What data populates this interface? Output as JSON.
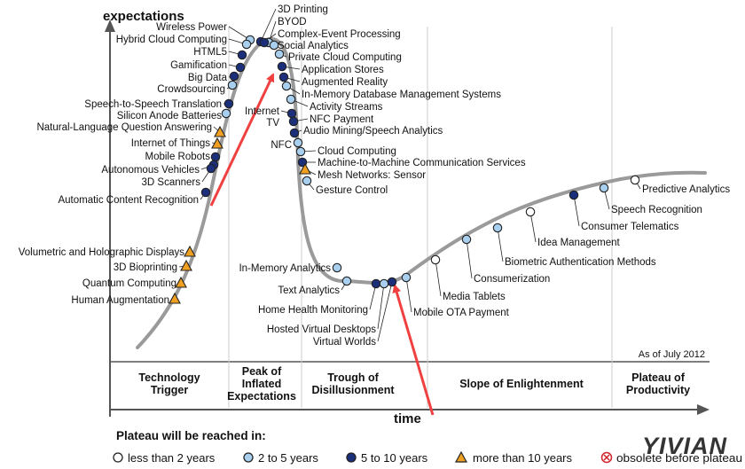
{
  "chart_data": {
    "type": "scatter",
    "xlabel": "time",
    "ylabel": "expectations",
    "as_of": "As of July 2012",
    "phases": [
      "Technology Trigger",
      "Peak of Inflated Expectations",
      "Trough of Disillusionment",
      "Slope of Enlightenment",
      "Plateau of Productivity"
    ],
    "legend": {
      "title": "Plateau will be reached in:",
      "items": [
        {
          "key": "lt2",
          "label": "less than 2 years"
        },
        {
          "key": "2to5",
          "label": "2 to 5 years"
        },
        {
          "key": "5to10",
          "label": "5 to 10 years"
        },
        {
          "key": "gt10",
          "label": "more than 10 years"
        },
        {
          "key": "obsolete",
          "label": "obsolete before plateau"
        }
      ]
    },
    "colors": {
      "curve": "#9a9a9a",
      "lt2": "#ffffff",
      "2to5": "#a9cfee",
      "5to10": "#1b2f7a",
      "gt10": "#f0a020",
      "obsolete": "#d0202a",
      "arrow": "#f04040",
      "axis": "#555555"
    },
    "technologies": [
      {
        "label": "3D Printing",
        "phase": "Peak of Inflated Expectations",
        "plateau": "5to10"
      },
      {
        "label": "BYOD",
        "phase": "Peak of Inflated Expectations",
        "plateau": "2to5"
      },
      {
        "label": "Complex-Event Processing",
        "phase": "Peak of Inflated Expectations",
        "plateau": "5to10"
      },
      {
        "label": "Social Analytics",
        "phase": "Peak of Inflated Expectations",
        "plateau": "2to5"
      },
      {
        "label": "Private Cloud Computing",
        "phase": "Peak of Inflated Expectations",
        "plateau": "2to5"
      },
      {
        "label": "Application Stores",
        "phase": "Peak of Inflated Expectations",
        "plateau": "5to10"
      },
      {
        "label": "Augmented Reality",
        "phase": "Peak of Inflated Expectations",
        "plateau": "5to10"
      },
      {
        "label": "In-Memory Database Management Systems",
        "phase": "Peak of Inflated Expectations",
        "plateau": "2to5"
      },
      {
        "label": "Activity Streams",
        "phase": "Peak of Inflated Expectations",
        "plateau": "2to5"
      },
      {
        "label": "Internet TV",
        "phase": "Peak of Inflated Expectations",
        "plateau": "5to10"
      },
      {
        "label": "NFC Payment",
        "phase": "Peak of Inflated Expectations",
        "plateau": "5to10"
      },
      {
        "label": "Audio Mining/Speech Analytics",
        "phase": "Trough of Disillusionment",
        "plateau": "5to10"
      },
      {
        "label": "NFC",
        "phase": "Trough of Disillusionment",
        "plateau": "2to5"
      },
      {
        "label": "Cloud Computing",
        "phase": "Trough of Disillusionment",
        "plateau": "2to5"
      },
      {
        "label": "Machine-to-Machine Communication Services",
        "phase": "Trough of Disillusionment",
        "plateau": "5to10"
      },
      {
        "label": "Mesh Networks: Sensor",
        "phase": "Trough of Disillusionment",
        "plateau": "gt10"
      },
      {
        "label": "Gesture Control",
        "phase": "Trough of Disillusionment",
        "plateau": "2to5"
      },
      {
        "label": "In-Memory Analytics",
        "phase": "Trough of Disillusionment",
        "plateau": "2to5"
      },
      {
        "label": "Text Analytics",
        "phase": "Trough of Disillusionment",
        "plateau": "2to5"
      },
      {
        "label": "Home Health Monitoring",
        "phase": "Trough of Disillusionment",
        "plateau": "5to10"
      },
      {
        "label": "Hosted Virtual Desktops",
        "phase": "Trough of Disillusionment",
        "plateau": "2to5"
      },
      {
        "label": "Virtual Worlds",
        "phase": "Trough of Disillusionment",
        "plateau": "5to10"
      },
      {
        "label": "Mobile OTA Payment",
        "phase": "Trough of Disillusionment",
        "plateau": "2to5"
      },
      {
        "label": "Media Tablets",
        "phase": "Slope of Enlightenment",
        "plateau": "lt2"
      },
      {
        "label": "Consumerization",
        "phase": "Slope of Enlightenment",
        "plateau": "2to5"
      },
      {
        "label": "Biometric Authentication Methods",
        "phase": "Slope of Enlightenment",
        "plateau": "2to5"
      },
      {
        "label": "Idea Management",
        "phase": "Slope of Enlightenment",
        "plateau": "lt2"
      },
      {
        "label": "Consumer Telematics",
        "phase": "Slope of Enlightenment",
        "plateau": "5to10"
      },
      {
        "label": "Speech Recognition",
        "phase": "Slope of Enlightenment",
        "plateau": "2to5"
      },
      {
        "label": "Predictive Analytics",
        "phase": "Plateau of Productivity",
        "plateau": "lt2"
      },
      {
        "label": "Wireless Power",
        "phase": "Technology Trigger",
        "plateau": "2to5"
      },
      {
        "label": "Hybrid Cloud Computing",
        "phase": "Technology Trigger",
        "plateau": "2to5"
      },
      {
        "label": "HTML5",
        "phase": "Technology Trigger",
        "plateau": "5to10"
      },
      {
        "label": "Gamification",
        "phase": "Technology Trigger",
        "plateau": "5to10"
      },
      {
        "label": "Big Data",
        "phase": "Technology Trigger",
        "plateau": "5to10"
      },
      {
        "label": "Crowdsourcing",
        "phase": "Technology Trigger",
        "plateau": "2to5"
      },
      {
        "label": "Speech-to-Speech Translation",
        "phase": "Technology Trigger",
        "plateau": "5to10"
      },
      {
        "label": "Silicon Anode Batteries",
        "phase": "Technology Trigger",
        "plateau": "2to5"
      },
      {
        "label": "Natural-Language Question Answering",
        "phase": "Technology Trigger",
        "plateau": "gt10"
      },
      {
        "label": "Internet of Things",
        "phase": "Technology Trigger",
        "plateau": "gt10"
      },
      {
        "label": "Mobile Robots",
        "phase": "Technology Trigger",
        "plateau": "5to10"
      },
      {
        "label": "Autonomous Vehicles",
        "phase": "Technology Trigger",
        "plateau": "5to10"
      },
      {
        "label": "3D Scanners",
        "phase": "Technology Trigger",
        "plateau": "5to10"
      },
      {
        "label": "Automatic Content Recognition",
        "phase": "Technology Trigger",
        "plateau": "5to10"
      },
      {
        "label": "Volumetric and Holographic Displays",
        "phase": "Technology Trigger",
        "plateau": "gt10"
      },
      {
        "label": "3D Bioprinting",
        "phase": "Technology Trigger",
        "plateau": "gt10"
      },
      {
        "label": "Quantum Computing",
        "phase": "Technology Trigger",
        "plateau": "gt10"
      },
      {
        "label": "Human Augmentation",
        "phase": "Technology Trigger",
        "plateau": "gt10"
      }
    ]
  },
  "watermark": "YIVIAN"
}
